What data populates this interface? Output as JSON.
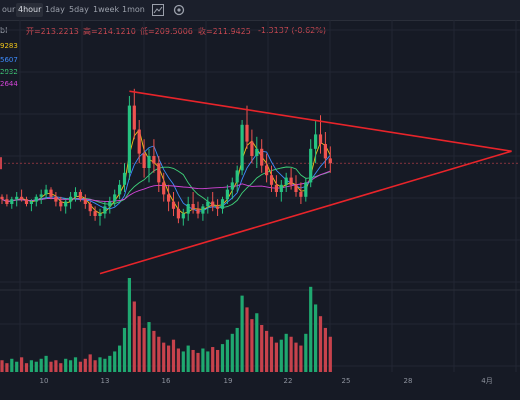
{
  "toolbar": {
    "intervals": [
      {
        "label": "our",
        "active": false
      },
      {
        "label": "4hour",
        "active": true
      },
      {
        "label": "1day",
        "active": false
      },
      {
        "label": "5day",
        "active": false
      },
      {
        "label": "1week",
        "active": false
      },
      {
        "label": "1mon",
        "active": false
      }
    ],
    "icons": [
      "chart-type-icon",
      "settings-icon"
    ]
  },
  "header": {
    "symbol_fragment": "bl",
    "open_label": "开=213.2213",
    "high_label": "高=214.1210",
    "low_label": "低=209.5006",
    "close_label": "收=211.9425",
    "change_label": "-1.3137 (-0.62%)"
  },
  "ma_values": [
    {
      "text": "9283",
      "color": "#f0c419"
    },
    {
      "text": "5607",
      "color": "#3d8bfd"
    },
    {
      "text": "2932",
      "color": "#3fd27a"
    },
    {
      "text": "2644",
      "color": "#d445d9"
    }
  ],
  "colors": {
    "up": "#26c281",
    "down": "#ef5350",
    "trend": "#e8242a",
    "volume_up": "#1fa870",
    "volume_down": "#c7424c"
  },
  "chart_data": {
    "type": "candlestick",
    "price_range": [
      195,
      295
    ],
    "last_price": 252,
    "x_ticks": [
      "10",
      "13",
      "16",
      "19",
      "22",
      "25",
      "28",
      "4月"
    ],
    "candles": [
      [
        238,
        239,
        235,
        237
      ],
      [
        237,
        239,
        234,
        235
      ],
      [
        235,
        238,
        233,
        237
      ],
      [
        237,
        240,
        234,
        238
      ],
      [
        238,
        241,
        236,
        237
      ],
      [
        237,
        238,
        234,
        235
      ],
      [
        235,
        237,
        232,
        236
      ],
      [
        236,
        239,
        234,
        238
      ],
      [
        238,
        241,
        235,
        239
      ],
      [
        239,
        243,
        237,
        241
      ],
      [
        241,
        242,
        237,
        238
      ],
      [
        238,
        240,
        234,
        236
      ],
      [
        236,
        238,
        232,
        234
      ],
      [
        234,
        237,
        231,
        236
      ],
      [
        236,
        240,
        233,
        238
      ],
      [
        238,
        242,
        236,
        240
      ],
      [
        240,
        241,
        236,
        237
      ],
      [
        237,
        239,
        233,
        235
      ],
      [
        235,
        236,
        230,
        232
      ],
      [
        232,
        234,
        228,
        230
      ],
      [
        230,
        233,
        226,
        231
      ],
      [
        231,
        236,
        229,
        234
      ],
      [
        234,
        238,
        231,
        236
      ],
      [
        236,
        241,
        234,
        239
      ],
      [
        239,
        245,
        237,
        243
      ],
      [
        243,
        252,
        240,
        248
      ],
      [
        248,
        280,
        245,
        276
      ],
      [
        276,
        283,
        262,
        266
      ],
      [
        266,
        270,
        252,
        256
      ],
      [
        256,
        262,
        246,
        250
      ],
      [
        250,
        258,
        244,
        255
      ],
      [
        255,
        262,
        248,
        252
      ],
      [
        252,
        255,
        240,
        244
      ],
      [
        244,
        248,
        236,
        239
      ],
      [
        239,
        243,
        232,
        236
      ],
      [
        236,
        240,
        230,
        233
      ],
      [
        233,
        236,
        227,
        229
      ],
      [
        229,
        233,
        226,
        231
      ],
      [
        231,
        238,
        228,
        235
      ],
      [
        235,
        240,
        231,
        233
      ],
      [
        233,
        236,
        229,
        231
      ],
      [
        231,
        235,
        228,
        234
      ],
      [
        234,
        238,
        231,
        236
      ],
      [
        236,
        240,
        232,
        234
      ],
      [
        234,
        237,
        230,
        233
      ],
      [
        233,
        238,
        231,
        237
      ],
      [
        237,
        243,
        235,
        241
      ],
      [
        241,
        246,
        237,
        244
      ],
      [
        244,
        251,
        240,
        249
      ],
      [
        249,
        270,
        247,
        268
      ],
      [
        268,
        276,
        258,
        261
      ],
      [
        261,
        266,
        252,
        255
      ],
      [
        255,
        263,
        250,
        258
      ],
      [
        258,
        262,
        248,
        251
      ],
      [
        251,
        256,
        244,
        247
      ],
      [
        247,
        251,
        240,
        243
      ],
      [
        243,
        247,
        238,
        240
      ],
      [
        240,
        245,
        236,
        243
      ],
      [
        243,
        248,
        240,
        246
      ],
      [
        246,
        250,
        241,
        243
      ],
      [
        243,
        247,
        238,
        240
      ],
      [
        240,
        244,
        235,
        238
      ],
      [
        238,
        246,
        236,
        244
      ],
      [
        244,
        262,
        242,
        258
      ],
      [
        258,
        270,
        252,
        264
      ],
      [
        264,
        272,
        256,
        260
      ],
      [
        260,
        265,
        250,
        254
      ],
      [
        254,
        259,
        248,
        252
      ]
    ],
    "volumes": [
      8,
      6,
      9,
      7,
      10,
      6,
      8,
      7,
      9,
      11,
      7,
      8,
      6,
      9,
      8,
      10,
      7,
      9,
      12,
      8,
      10,
      9,
      11,
      14,
      18,
      30,
      64,
      48,
      38,
      30,
      34,
      28,
      24,
      20,
      18,
      22,
      16,
      14,
      18,
      15,
      13,
      16,
      14,
      17,
      15,
      19,
      22,
      26,
      30,
      52,
      44,
      36,
      40,
      32,
      28,
      24,
      20,
      22,
      26,
      24,
      20,
      18,
      26,
      58,
      46,
      38,
      30,
      24
    ],
    "trendlines": [
      {
        "from": {
          "i": 26,
          "p": 282
        },
        "to": {
          "i": 104,
          "p": 257
        }
      },
      {
        "from": {
          "i": 20,
          "p": 206
        },
        "to": {
          "i": 104,
          "p": 257
        }
      }
    ]
  }
}
